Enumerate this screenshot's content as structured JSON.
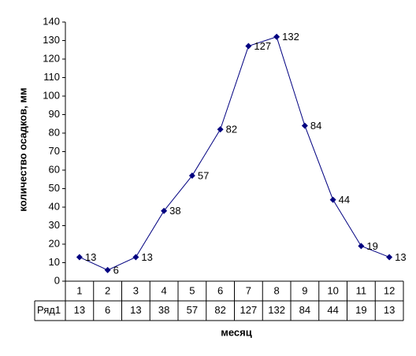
{
  "chart_data": {
    "type": "line",
    "y_label": "количество осадков, мм",
    "x_label": "месяц",
    "categories": [
      1,
      2,
      3,
      4,
      5,
      6,
      7,
      8,
      9,
      10,
      11,
      12
    ],
    "series": [
      {
        "name": "Ряд1",
        "color": "#000080",
        "values": [
          13,
          6,
          13,
          38,
          57,
          82,
          127,
          132,
          84,
          44,
          19,
          13
        ]
      }
    ],
    "ylim": [
      0,
      140
    ],
    "yticks": [
      0,
      10,
      20,
      30,
      40,
      50,
      60,
      70,
      80,
      90,
      100,
      110,
      120,
      130,
      140
    ],
    "data_labels": true,
    "data_table": true
  }
}
